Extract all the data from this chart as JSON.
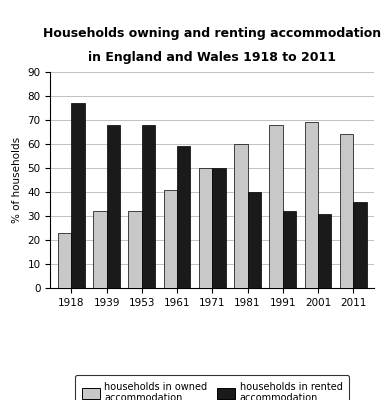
{
  "title_line1": "Households owning and renting accommodation",
  "title_line2": "in England and Wales 1918 to 2011",
  "years": [
    "1918",
    "1939",
    "1953",
    "1961",
    "1971",
    "1981",
    "1991",
    "2001",
    "2011"
  ],
  "owned": [
    23,
    32,
    32,
    41,
    50,
    60,
    68,
    69,
    64
  ],
  "rented": [
    77,
    68,
    68,
    59,
    50,
    40,
    32,
    31,
    36
  ],
  "owned_color": "#c8c8c8",
  "rented_color": "#1a1a1a",
  "ylabel": "% of households",
  "ylim": [
    0,
    90
  ],
  "yticks": [
    0,
    10,
    20,
    30,
    40,
    50,
    60,
    70,
    80,
    90
  ],
  "legend_owned": "households in owned\naccommodation",
  "legend_rented": "households in rented\naccommodation",
  "bar_width": 0.38,
  "grid_color": "#aaaaaa",
  "background_color": "#ffffff",
  "title_fontsize": 9,
  "axis_fontsize": 7.5,
  "legend_fontsize": 7,
  "ylabel_fontsize": 7.5
}
